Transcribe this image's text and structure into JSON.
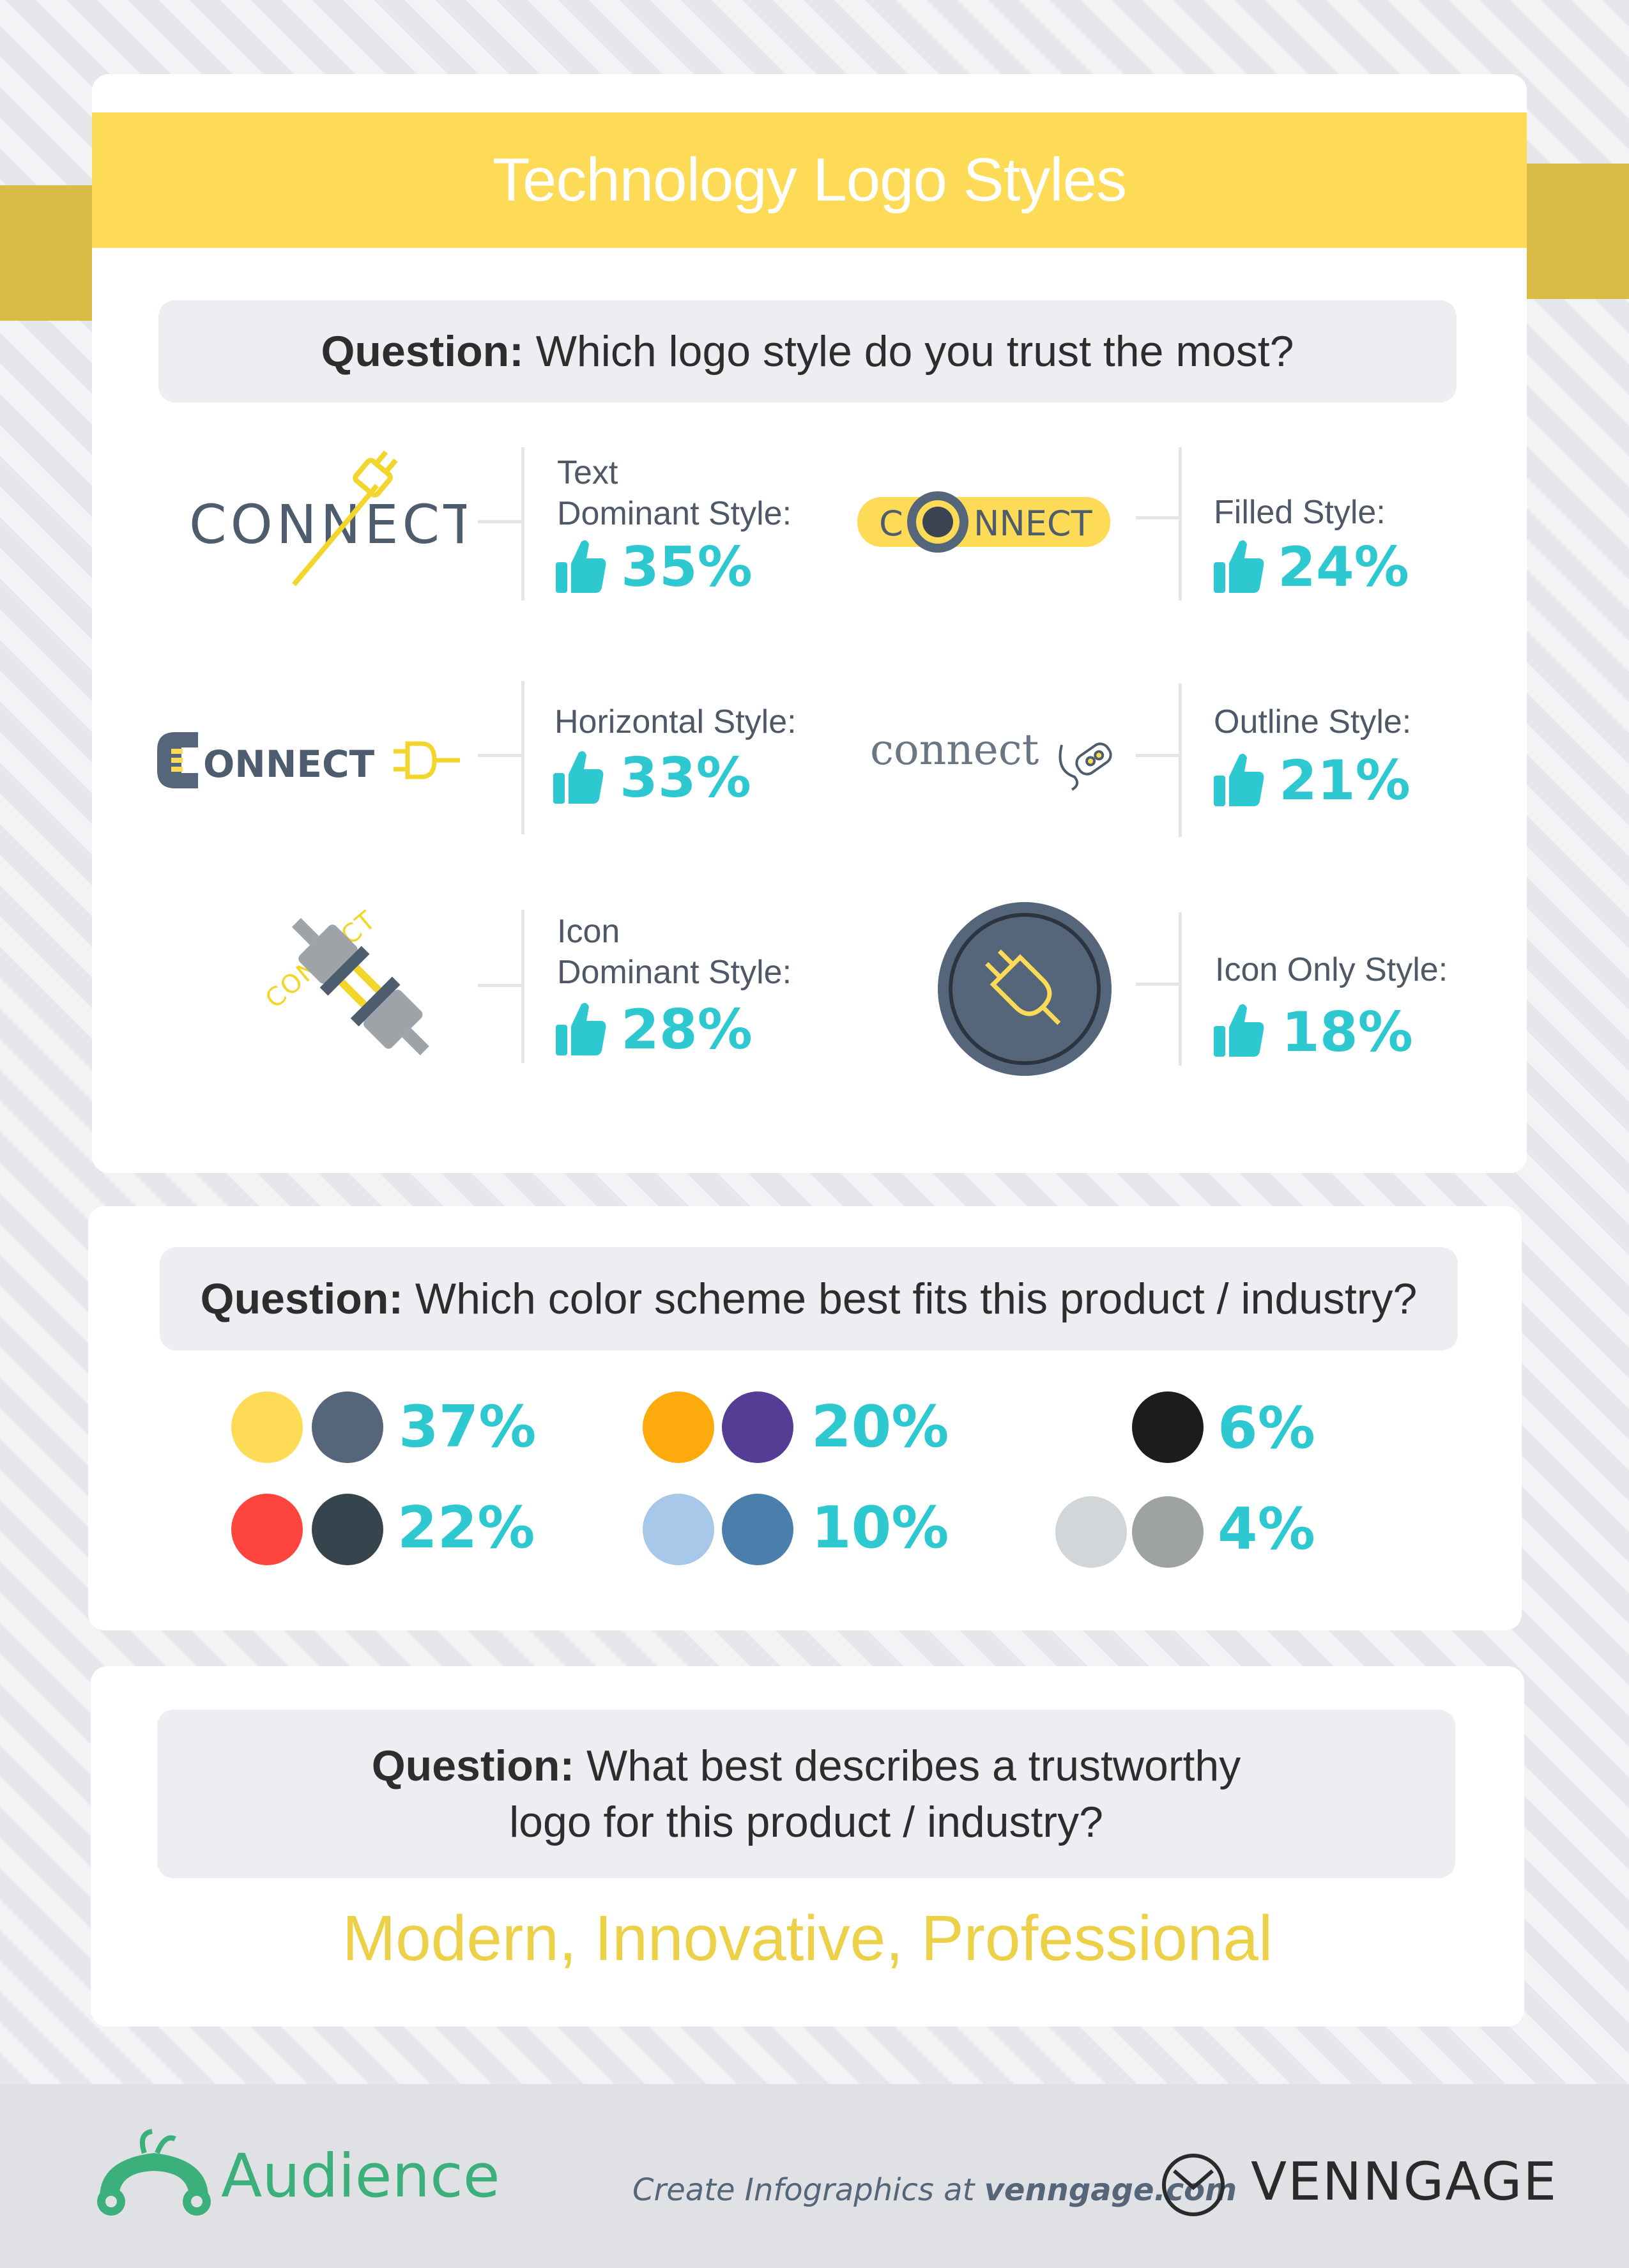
{
  "header": {
    "title": "Technology Logo Styles"
  },
  "question1": {
    "label": "Question:",
    "text": "Which logo style do you trust the most?",
    "items": [
      {
        "logo": "CONNECT",
        "label_line1": "Text",
        "label_line2": "Dominant Style:",
        "percent": "35%"
      },
      {
        "logo": "CONNECT",
        "label": "Filled Style:",
        "percent": "24%"
      },
      {
        "logo": "CONNECT",
        "label": "Horizontal Style:",
        "percent": "33%"
      },
      {
        "logo": "connect",
        "label": "Outline Style:",
        "percent": "21%"
      },
      {
        "logo": "CONNECT",
        "label_line1": "Icon",
        "label_line2": "Dominant Style:",
        "percent": "28%"
      },
      {
        "label": "Icon Only Style:",
        "percent": "18%"
      }
    ]
  },
  "question2": {
    "label": "Question:",
    "text": "Which color scheme best fits this product / industry?",
    "schemes": [
      {
        "colors": [
          "#fddb56",
          "#56667a"
        ],
        "percent": "37%"
      },
      {
        "colors": [
          "#fdaa0d",
          "#553d96"
        ],
        "percent": "20%"
      },
      {
        "colors": [
          "#1c1c1c"
        ],
        "percent": "6%"
      },
      {
        "colors": [
          "#fd443d",
          "#36444e"
        ],
        "percent": "22%"
      },
      {
        "colors": [
          "#a8c8ea",
          "#4a7fab"
        ],
        "percent": "10%"
      },
      {
        "colors": [
          "#d2d6d8",
          "#9ea2a3"
        ],
        "percent": "4%"
      }
    ]
  },
  "question3": {
    "label": "Question:",
    "line1": "What best describes a trustworthy",
    "line2": "logo for this product / industry?",
    "answer": "Modern, Innovative, Professional"
  },
  "footer": {
    "brand": "Audience",
    "cta_prefix": "Create Infographics at ",
    "cta_site": "venngage.com",
    "venngage": "VENNGAGE"
  },
  "colors": {
    "accent_yellow": "#fddb56",
    "accent_dark_yellow": "#d8bc46",
    "accent_teal": "#2ec8d0",
    "slate": "#56667a",
    "audience_green": "#3cb07a",
    "answer_gold": "#ecd047"
  },
  "icons": [
    "thumbs-up-icon",
    "plug-icon",
    "audience-logo-icon",
    "venngage-logo-icon"
  ]
}
